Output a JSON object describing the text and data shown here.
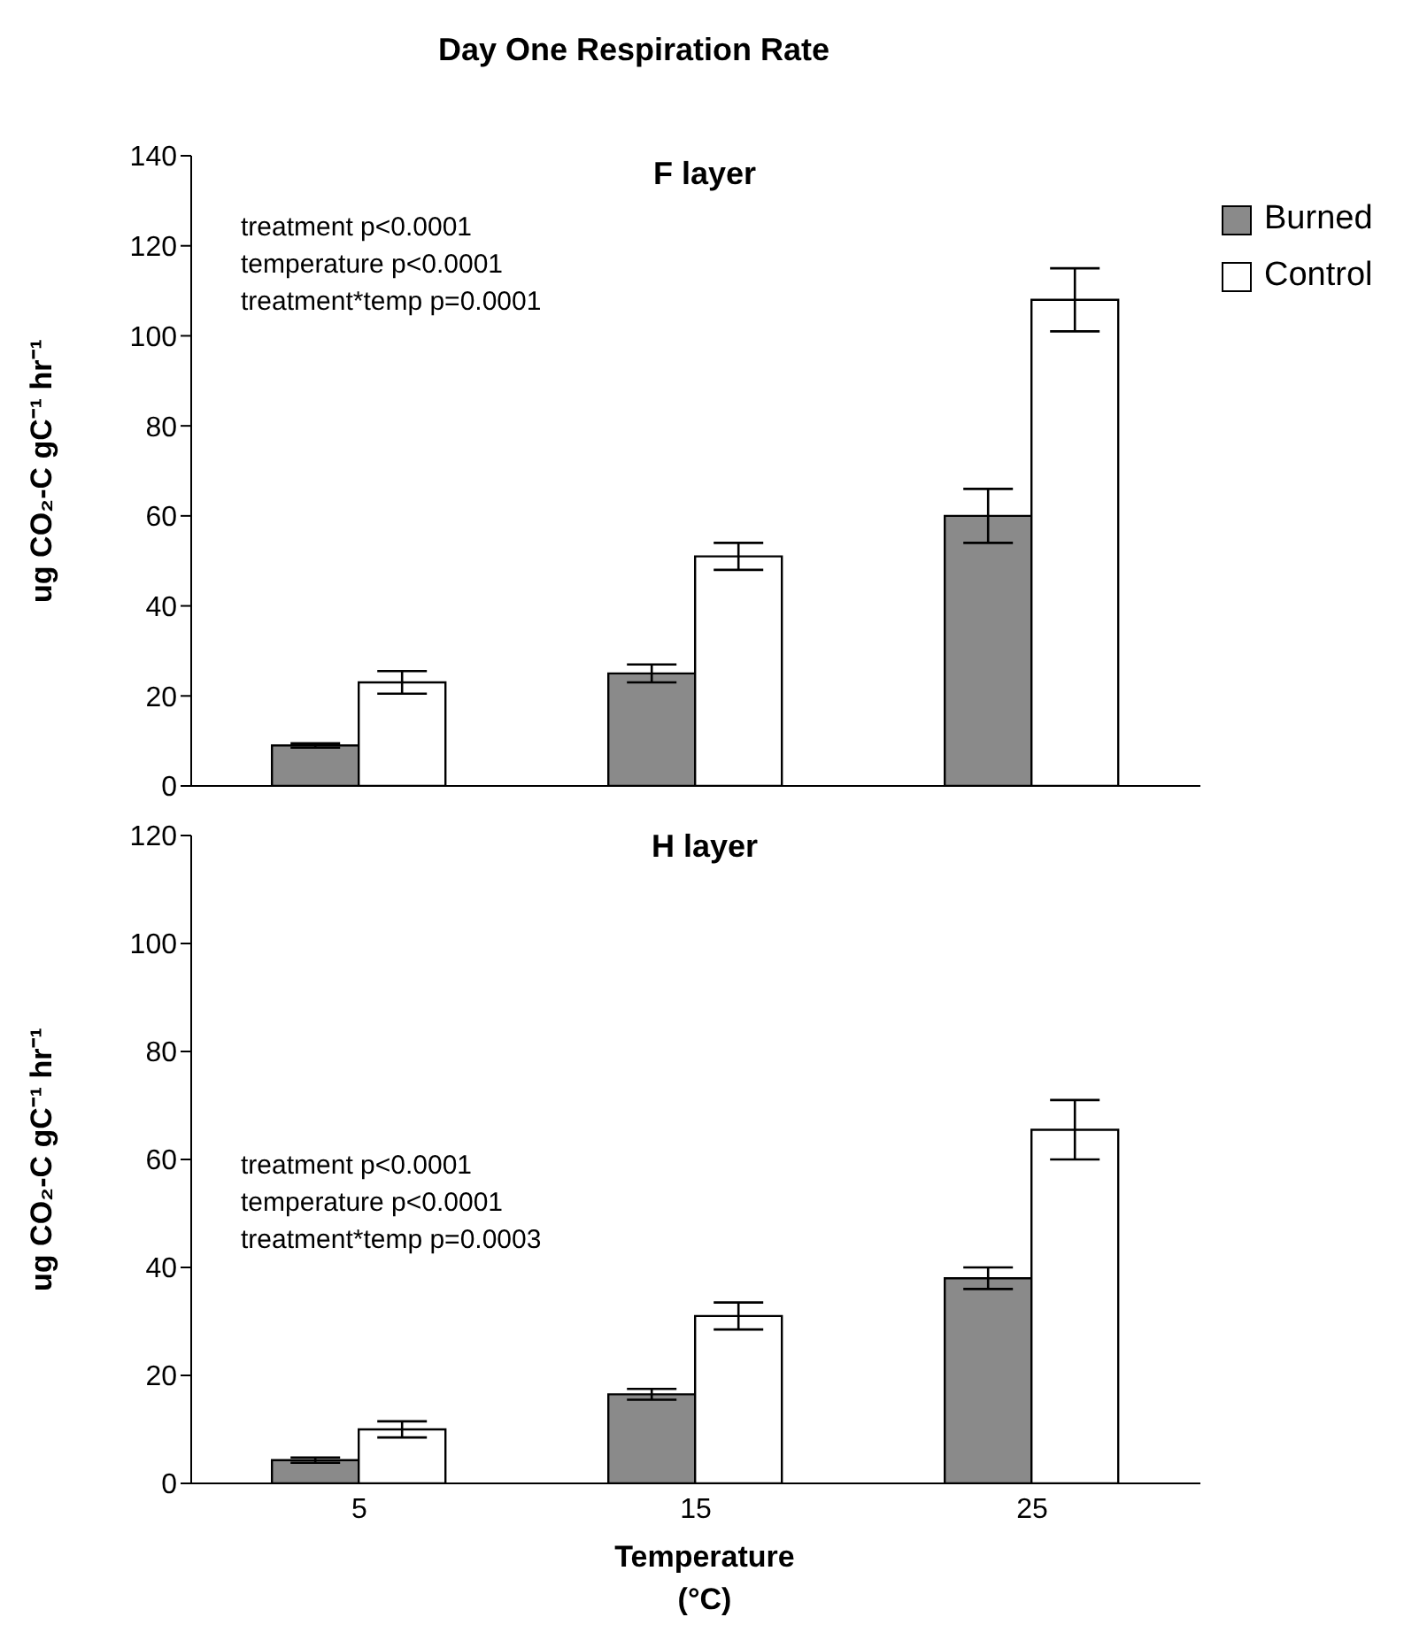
{
  "chart_data": [
    {
      "type": "bar",
      "title": "Day One Respiration Rate",
      "subtitle": "F layer",
      "ylabel": "ug CO₂-C gC⁻¹ hr⁻¹",
      "categories": [
        "5",
        "15",
        "25"
      ],
      "series": [
        {
          "name": "Burned",
          "color": "#8a8a8a",
          "values": [
            9,
            25,
            60
          ],
          "errors": [
            0.5,
            2,
            6
          ]
        },
        {
          "name": "Control",
          "color": "#ffffff",
          "values": [
            23,
            51,
            108
          ],
          "errors": [
            2.5,
            3,
            7
          ]
        }
      ],
      "ylim": [
        0,
        140
      ],
      "yticks": [
        0,
        20,
        40,
        60,
        80,
        100,
        120,
        140
      ],
      "grid": false,
      "legend": "right",
      "tick_labels": "y",
      "annotations": [
        "treatment p<0.0001",
        "temperature p<0.0001",
        "treatment*temp p=0.0001"
      ]
    },
    {
      "type": "bar",
      "subtitle": "H layer",
      "ylabel": "ug CO₂-C gC⁻¹ hr⁻¹",
      "xlabel": "Temperature (°C)",
      "categories": [
        "5",
        "15",
        "25"
      ],
      "series": [
        {
          "color": "#8a8a8a",
          "values": [
            4.3,
            16.5,
            38
          ],
          "errors": [
            0.5,
            1,
            2
          ]
        },
        {
          "color": "#ffffff",
          "values": [
            10,
            31,
            65.5
          ],
          "errors": [
            1.5,
            2.5,
            5.5
          ]
        }
      ],
      "ylim": [
        0,
        120
      ],
      "yticks": [
        0,
        20,
        40,
        60,
        80,
        100,
        120
      ],
      "grid": false,
      "annotations": [
        "treatment p<0.0001",
        "temperature p<0.0001",
        "treatment*temp p=0.0003"
      ]
    }
  ]
}
